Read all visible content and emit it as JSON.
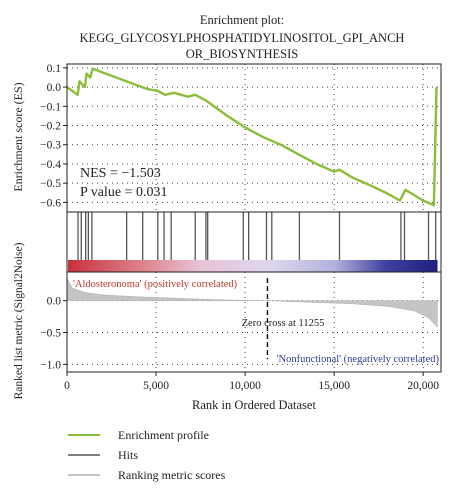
{
  "title_lines": [
    "Enrichment plot:",
    "KEGG_GLYCOSYLPHOSPHATIDYLINOSITOL_GPI_ANCH",
    "OR_BIOSYNTHESIS"
  ],
  "colors": {
    "es_line": "#8bbd3a",
    "hits": "#555555",
    "ranking_fill": "#c4c4c4",
    "positive_label": "#c0392b",
    "negative_label": "#2f3c8f",
    "gradient": [
      "#c8303e",
      "#df8a92",
      "#e8c3d8",
      "#ddd6ee",
      "#b3b3df",
      "#4040a0",
      "#1f1f7f"
    ]
  },
  "chart_data": {
    "type": "line",
    "x_max": 21000,
    "es_panel": {
      "ylabel": "Enrichment score (ES)",
      "ylim": [
        -0.65,
        0.12
      ],
      "yticks": [
        0.1,
        0.0,
        -0.1,
        -0.2,
        -0.3,
        -0.4,
        -0.5,
        -0.6
      ],
      "ytick_labels": [
        "0.1",
        "0.0",
        "−0.1",
        "−0.2",
        "−0.3",
        "−0.4",
        "−0.5",
        "−0.6"
      ],
      "series": {
        "name": "Enrichment profile",
        "points": [
          [
            0,
            0.0
          ],
          [
            600,
            -0.04
          ],
          [
            700,
            0.03
          ],
          [
            1000,
            0.0
          ],
          [
            1100,
            0.07
          ],
          [
            1300,
            0.05
          ],
          [
            1450,
            0.095
          ],
          [
            4500,
            -0.01
          ],
          [
            5100,
            -0.02
          ],
          [
            5500,
            -0.04
          ],
          [
            6000,
            -0.03
          ],
          [
            6800,
            -0.05
          ],
          [
            7200,
            -0.04
          ],
          [
            7800,
            -0.07
          ],
          [
            9000,
            -0.15
          ],
          [
            10000,
            -0.21
          ],
          [
            11000,
            -0.26
          ],
          [
            12000,
            -0.3
          ],
          [
            13000,
            -0.35
          ],
          [
            14000,
            -0.4
          ],
          [
            15000,
            -0.44
          ],
          [
            15300,
            -0.43
          ],
          [
            16000,
            -0.47
          ],
          [
            17000,
            -0.51
          ],
          [
            18000,
            -0.555
          ],
          [
            18700,
            -0.59
          ],
          [
            19000,
            -0.535
          ],
          [
            20000,
            -0.59
          ],
          [
            20600,
            -0.615
          ],
          [
            20750,
            0.0
          ]
        ]
      },
      "annotations": [
        "NES = −1.503",
        "P value = 0.031"
      ]
    },
    "hits": {
      "name": "Hits",
      "positions": [
        620,
        800,
        1050,
        1200,
        1400,
        3350,
        4250,
        5100,
        5450,
        5850,
        7200,
        7800,
        7900,
        9900,
        10200,
        11200,
        11500,
        13050,
        15300,
        18750,
        18950,
        20300,
        20700
      ]
    },
    "ranking_panel": {
      "ylabel": "Ranked list metric (Signal2Noise)",
      "ylim": [
        -1.12,
        0.45
      ],
      "yticks": [
        0.0,
        -0.5,
        -1.0
      ],
      "ytick_labels": [
        "0.0",
        "−0.5",
        "−1.0"
      ],
      "series": {
        "name": "Ranking metric scores",
        "points": [
          [
            0,
            0.35
          ],
          [
            300,
            0.2
          ],
          [
            1000,
            0.13
          ],
          [
            2000,
            0.09
          ],
          [
            4000,
            0.06
          ],
          [
            7000,
            0.03
          ],
          [
            9000,
            0.01
          ],
          [
            11255,
            0.0
          ],
          [
            13000,
            -0.02
          ],
          [
            16000,
            -0.05
          ],
          [
            18000,
            -0.09
          ],
          [
            19500,
            -0.16
          ],
          [
            20300,
            -0.27
          ],
          [
            20800,
            -0.42
          ]
        ]
      },
      "zero_cross": 11255,
      "zero_cross_label": "Zero cross at 11255",
      "positive_label": "'Aldosteronoma' (positively correlated)",
      "negative_label": "'Nonfunctional' (negatively correlated)"
    },
    "xlabel": "Rank in Ordered Dataset",
    "xticks": [
      0,
      5000,
      10000,
      15000,
      20000
    ],
    "xtick_labels": [
      "0",
      "5,000",
      "10,000",
      "15,000",
      "20,000"
    ],
    "legend": [
      {
        "label": "Enrichment profile",
        "color": "#8bbd3a"
      },
      {
        "label": "Hits",
        "color": "#555555"
      },
      {
        "label": "Ranking metric scores",
        "color": "#c4c4c4"
      }
    ],
    "legend_position": "bottom"
  }
}
